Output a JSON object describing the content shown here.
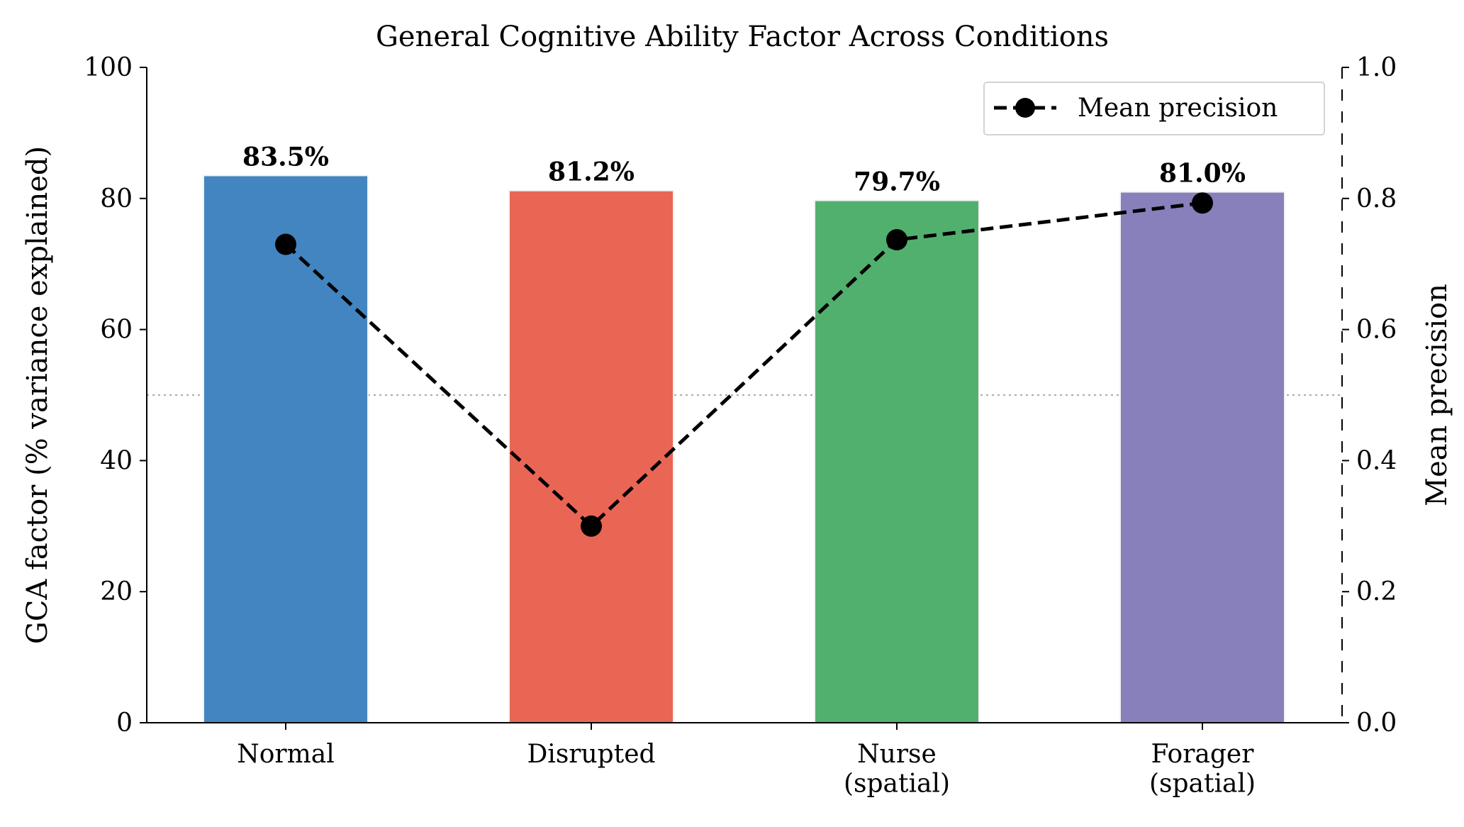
{
  "chart_data": {
    "type": "bar",
    "title": "General Cognitive Ability Factor Across Conditions",
    "categories": [
      [
        "Normal"
      ],
      [
        "Disrupted"
      ],
      [
        "Nurse",
        "(spatial)"
      ],
      [
        "Forager",
        "(spatial)"
      ]
    ],
    "bars": {
      "name": "GCA factor",
      "values": [
        83.5,
        81.2,
        79.7,
        81.0
      ],
      "labels": [
        "83.5%",
        "81.2%",
        "79.7%",
        "81.0%"
      ],
      "colors": [
        "#4285c1",
        "#e96655",
        "#52b06e",
        "#8880bb"
      ]
    },
    "line": {
      "name": "Mean precision",
      "values": [
        0.73,
        0.3,
        0.737,
        0.793
      ],
      "style": "dashed",
      "marker": "circle",
      "color": "#000000"
    },
    "reference_line": {
      "axis": "y2",
      "value": 0.5,
      "style": "dotted",
      "color": "#aaaaaa"
    },
    "ylabel": "GCA factor (% variance explained)",
    "ylim": [
      0,
      100
    ],
    "yticks": [
      "0",
      "20",
      "40",
      "60",
      "80",
      "100"
    ],
    "y2label": "Mean precision",
    "y2lim": [
      0,
      1.0
    ],
    "y2ticks": [
      "0.0",
      "0.2",
      "0.4",
      "0.6",
      "0.8",
      "1.0"
    ],
    "legend": {
      "position": "top-right",
      "entries": [
        "Mean precision"
      ]
    }
  }
}
